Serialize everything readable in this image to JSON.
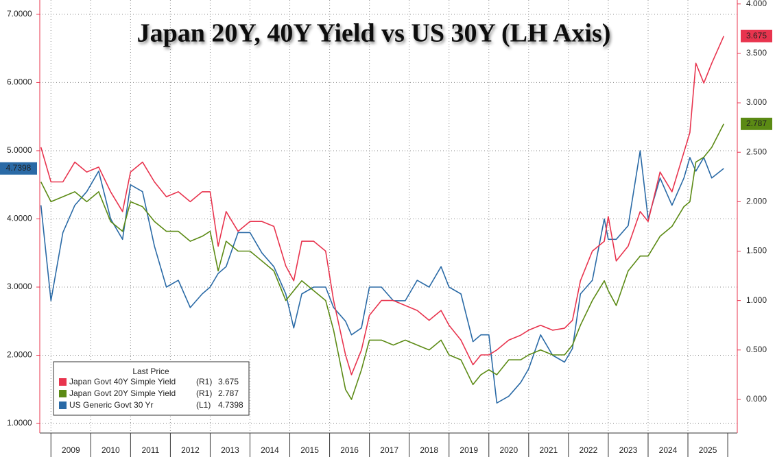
{
  "chart_data": {
    "type": "line",
    "title": "Japan 20Y, 40Y Yield vs US 30Y (LH Axis)",
    "legend_title": "Last Price",
    "x": [
      2008.75,
      2009.0,
      2009.3,
      2009.6,
      2009.9,
      2010.2,
      2010.5,
      2010.8,
      2011.0,
      2011.3,
      2011.6,
      2011.9,
      2012.2,
      2012.5,
      2012.8,
      2013.0,
      2013.2,
      2013.4,
      2013.7,
      2014.0,
      2014.3,
      2014.6,
      2014.9,
      2015.1,
      2015.3,
      2015.6,
      2015.9,
      2016.1,
      2016.4,
      2016.55,
      2016.8,
      2017.0,
      2017.3,
      2017.6,
      2017.9,
      2018.2,
      2018.5,
      2018.8,
      2019.0,
      2019.3,
      2019.6,
      2019.8,
      2020.0,
      2020.2,
      2020.5,
      2020.8,
      2021.0,
      2021.3,
      2021.6,
      2021.9,
      2022.1,
      2022.3,
      2022.6,
      2022.9,
      2023.0,
      2023.2,
      2023.5,
      2023.8,
      2024.0,
      2024.3,
      2024.6,
      2024.9,
      2025.05,
      2025.2,
      2025.4,
      2025.6,
      2025.9
    ],
    "series": [
      {
        "name": "Japan Govt 40Y Simple Yield",
        "axis_label": "(R1)",
        "axis": "y2",
        "color": "#e8344e",
        "values": [
          2.55,
          2.2,
          2.2,
          2.4,
          2.3,
          2.35,
          2.1,
          1.9,
          2.3,
          2.4,
          2.2,
          2.05,
          2.1,
          2.0,
          2.1,
          2.1,
          1.55,
          1.9,
          1.7,
          1.8,
          1.8,
          1.75,
          1.35,
          1.2,
          1.6,
          1.6,
          1.5,
          1.0,
          0.45,
          0.25,
          0.5,
          0.85,
          1.0,
          1.0,
          0.95,
          0.9,
          0.8,
          0.9,
          0.75,
          0.6,
          0.35,
          0.45,
          0.45,
          0.5,
          0.6,
          0.65,
          0.7,
          0.75,
          0.7,
          0.72,
          0.8,
          1.2,
          1.5,
          1.6,
          1.85,
          1.4,
          1.55,
          1.9,
          1.8,
          2.3,
          2.1,
          2.5,
          2.7,
          3.4,
          3.2,
          3.4,
          3.675
        ]
      },
      {
        "name": "Japan Govt 20Y Simple Yield",
        "axis_label": "(R1)",
        "axis": "y2",
        "color": "#5b8a14",
        "values": [
          2.2,
          2.0,
          2.05,
          2.1,
          2.0,
          2.1,
          1.8,
          1.7,
          2.0,
          1.95,
          1.8,
          1.7,
          1.7,
          1.6,
          1.65,
          1.7,
          1.3,
          1.6,
          1.5,
          1.5,
          1.4,
          1.3,
          1.0,
          1.1,
          1.2,
          1.1,
          1.0,
          0.7,
          0.1,
          0.0,
          0.3,
          0.6,
          0.6,
          0.55,
          0.6,
          0.55,
          0.5,
          0.6,
          0.45,
          0.4,
          0.15,
          0.25,
          0.3,
          0.25,
          0.4,
          0.4,
          0.45,
          0.5,
          0.45,
          0.45,
          0.55,
          0.75,
          1.0,
          1.2,
          1.1,
          0.95,
          1.3,
          1.45,
          1.45,
          1.65,
          1.75,
          1.95,
          2.0,
          2.4,
          2.45,
          2.55,
          2.787
        ]
      },
      {
        "name": "US Generic Govt 30 Yr",
        "axis_label": "(L1)",
        "axis": "y",
        "color": "#2a6aa6",
        "values": [
          4.2,
          2.8,
          3.8,
          4.2,
          4.4,
          4.7,
          4.0,
          3.7,
          4.5,
          4.4,
          3.6,
          3.0,
          3.1,
          2.7,
          2.9,
          3.0,
          3.2,
          3.3,
          3.8,
          3.8,
          3.5,
          3.3,
          2.9,
          2.4,
          2.9,
          3.0,
          3.0,
          2.7,
          2.5,
          2.3,
          2.4,
          3.0,
          3.0,
          2.8,
          2.8,
          3.1,
          3.0,
          3.3,
          3.0,
          2.9,
          2.2,
          2.3,
          2.3,
          1.3,
          1.4,
          1.6,
          1.8,
          2.3,
          2.0,
          1.9,
          2.1,
          2.9,
          3.1,
          4.0,
          3.7,
          3.7,
          3.9,
          5.0,
          4.0,
          4.6,
          4.2,
          4.6,
          4.9,
          4.7,
          4.9,
          4.6,
          4.7398
        ]
      }
    ],
    "xlim": [
      2008.72,
      2026.24
    ],
    "xticks": [
      {
        "value": 2009.5,
        "label": "2009"
      },
      {
        "value": 2010.5,
        "label": "2010"
      },
      {
        "value": 2011.5,
        "label": "2011"
      },
      {
        "value": 2012.5,
        "label": "2012"
      },
      {
        "value": 2013.5,
        "label": "2013"
      },
      {
        "value": 2014.5,
        "label": "2014"
      },
      {
        "value": 2015.5,
        "label": "2015"
      },
      {
        "value": 2016.5,
        "label": "2016"
      },
      {
        "value": 2017.5,
        "label": "2017"
      },
      {
        "value": 2018.5,
        "label": "2018"
      },
      {
        "value": 2019.5,
        "label": "2019"
      },
      {
        "value": 2020.5,
        "label": "2020"
      },
      {
        "value": 2021.5,
        "label": "2021"
      },
      {
        "value": 2022.5,
        "label": "2022"
      },
      {
        "value": 2023.5,
        "label": "2023"
      },
      {
        "value": 2024.5,
        "label": "2024"
      },
      {
        "value": 2025.5,
        "label": "2025"
      }
    ],
    "ylim": [
      0.86,
      7.21
    ],
    "yticks": [
      {
        "value": 1,
        "label": "1.0000"
      },
      {
        "value": 2,
        "label": "2.0000"
      },
      {
        "value": 3,
        "label": "3.0000"
      },
      {
        "value": 4,
        "label": "4.0000"
      },
      {
        "value": 5,
        "label": "5.0000"
      },
      {
        "value": 6,
        "label": "6.0000"
      },
      {
        "value": 7,
        "label": "7.0000"
      }
    ],
    "y2lim": [
      -0.34,
      4.04
    ],
    "y2ticks": [
      {
        "value": 0,
        "label": "0.000"
      },
      {
        "value": 0.5,
        "label": "0.500"
      },
      {
        "value": 1,
        "label": "1.000"
      },
      {
        "value": 1.5,
        "label": "1.500"
      },
      {
        "value": 2,
        "label": "2.000"
      },
      {
        "value": 2.5,
        "label": "2.500"
      },
      {
        "value": 3,
        "label": "3.000"
      },
      {
        "value": 3.5,
        "label": "3.500"
      },
      {
        "value": 4,
        "label": "4.000"
      }
    ],
    "grid": true
  }
}
